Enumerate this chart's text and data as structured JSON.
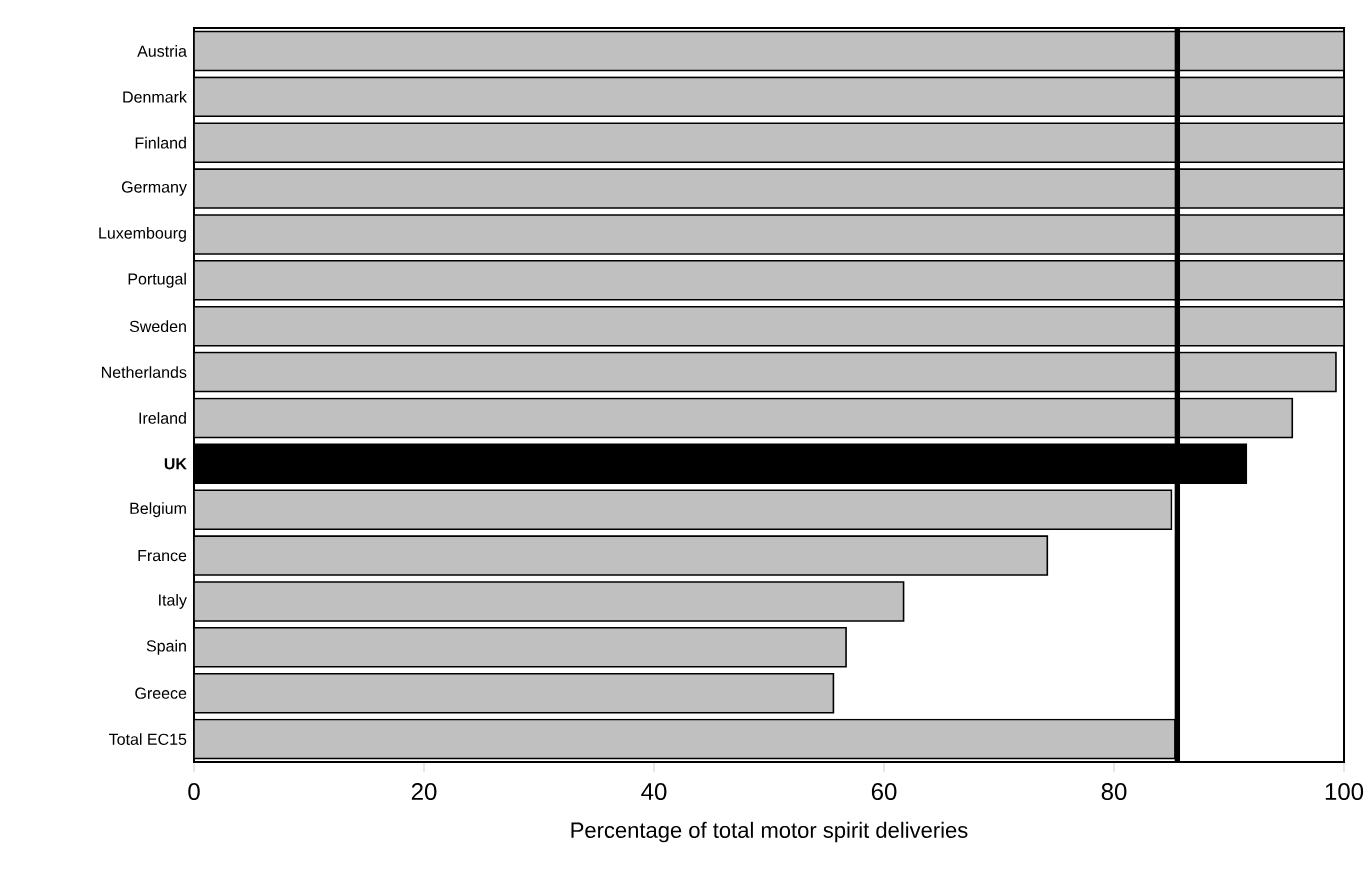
{
  "chart_data": {
    "type": "bar",
    "orientation": "horizontal",
    "xlabel": "Percentage of total motor spirit deliveries",
    "categories": [
      "Austria",
      "Denmark",
      "Finland",
      "Germany",
      "Luxembourg",
      "Portugal",
      "Sweden",
      "Netherlands",
      "Ireland",
      "**UK**",
      "Belgium",
      "France",
      "Italy",
      "Spain",
      "Greece",
      "Total EC15"
    ],
    "values": [
      100,
      100,
      100,
      100,
      100,
      100,
      100,
      99.3,
      95.5,
      91.5,
      85,
      74.2,
      61.7,
      56.7,
      55.6,
      85.3
    ],
    "colors": [
      "#c0c0c0",
      "#c0c0c0",
      "#c0c0c0",
      "#c0c0c0",
      "#c0c0c0",
      "#c0c0c0",
      "#c0c0c0",
      "#c0c0c0",
      "#c0c0c0",
      "#000000",
      "#c0c0c0",
      "#c0c0c0",
      "#c0c0c0",
      "#c0c0c0",
      "#c0c0c0",
      "#c0c0c0"
    ],
    "xlim": [
      0,
      100
    ],
    "xticks": [
      0,
      20,
      40,
      60,
      80,
      100
    ],
    "ref_lines": [
      {
        "axis": "x",
        "value": 85.5,
        "color": "#000000"
      }
    ],
    "grid": false
  }
}
